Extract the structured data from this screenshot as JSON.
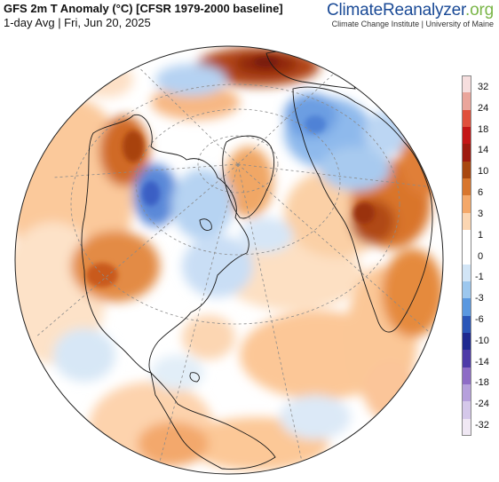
{
  "header": {
    "title": "GFS 2m T Anomaly (°C) [CFSR 1979-2000 baseline]",
    "subtitle": "1-day Avg | Fri, Jun 20, 2025"
  },
  "brand": {
    "name_main": "ClimateReanalyzer",
    "name_suffix": ".org",
    "tagline": "Climate Change Institute | University of Maine"
  },
  "legend": {
    "ticks": [
      "32",
      "24",
      "18",
      "14",
      "10",
      "6",
      "3",
      "1",
      "0",
      "-1",
      "-3",
      "-6",
      "-10",
      "-14",
      "-18",
      "-24",
      "-32"
    ],
    "colors": [
      "#f6dede",
      "#eaa59b",
      "#e0503c",
      "#c41616",
      "#9e1a0f",
      "#a8470f",
      "#d8762d",
      "#f4a869",
      "#fbd6b2",
      "#ffffff",
      "#ffffff",
      "#d2e5f6",
      "#9cc7ee",
      "#5a98e0",
      "#2a56b8",
      "#1e2990",
      "#4d3aa8",
      "#8e6cc6",
      "#b6a0dc",
      "#d5c8ea",
      "#f0e8f4"
    ]
  },
  "map": {
    "projection": "orthographic",
    "background_color": "#ffffff",
    "land_outline_color": "#000000",
    "graticule_color": "#888888"
  }
}
